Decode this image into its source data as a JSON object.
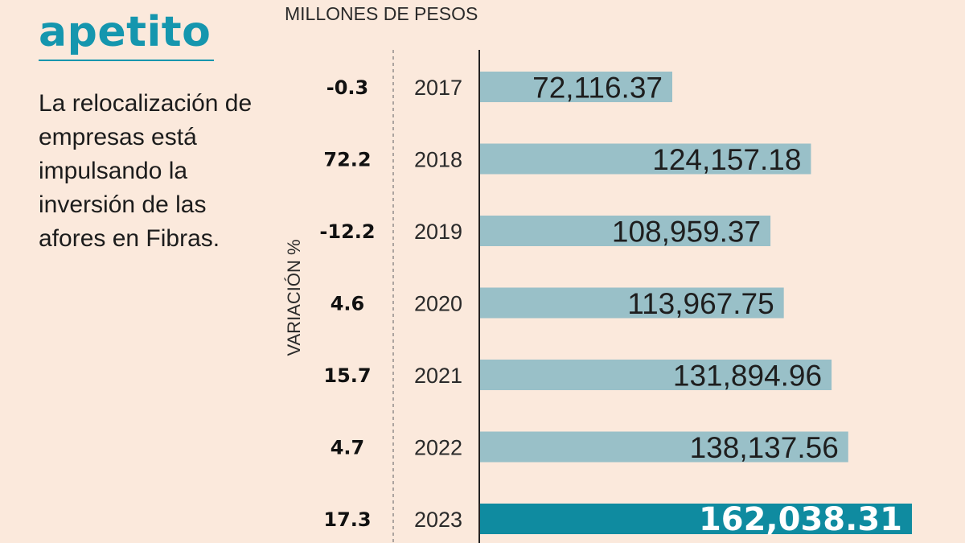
{
  "text": {
    "title_word": "apetito",
    "description": "La relocalización de empresas está impulsando la inversión de las afores en Fibras.",
    "units_label": "MILLONES DE PESOS",
    "variation_axis_label": "VARIACIÓN %"
  },
  "colors": {
    "background": "#fbe9dc",
    "accent": "#1596ae",
    "bar": "#99c0c8",
    "bar_highlight": "#0f8ba0"
  },
  "chart_data": {
    "type": "bar",
    "orientation": "horizontal",
    "title": "",
    "xlabel": "MILLONES DE PESOS",
    "ylabel": "",
    "xlim": [
      0,
      172000
    ],
    "categories": [
      "2017",
      "2018",
      "2019",
      "2020",
      "2021",
      "2022",
      "2023"
    ],
    "values": [
      72116.37,
      124157.18,
      108959.37,
      113967.75,
      131894.96,
      138137.56,
      162038.31
    ],
    "value_labels": [
      "72,116.37",
      "124,157.18",
      "108,959.37",
      "113,967.75",
      "131,894.96",
      "138,137.56",
      "162,038.31"
    ],
    "variation_label": "VARIACIÓN %",
    "variation": [
      "-0.3",
      "72.2",
      "-12.2",
      "4.6",
      "15.7",
      "4.7",
      "17.3"
    ],
    "highlight_category": "2023"
  }
}
